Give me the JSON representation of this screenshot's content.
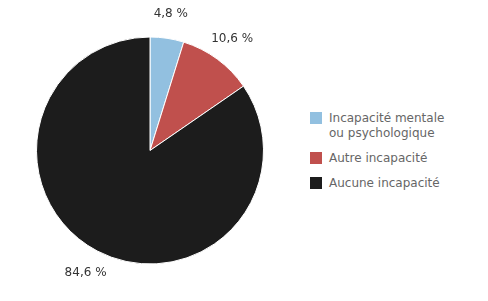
{
  "chart_data": {
    "type": "pie",
    "categories": [
      "Incapacité mentale\nou psychologique",
      "Autre incapacité",
      "Aucune incapacité"
    ],
    "values": [
      4.8,
      10.6,
      84.6
    ],
    "value_labels": [
      "4,8 %",
      "10,6 %",
      "84,6 %"
    ],
    "colors": [
      "#92C0E0",
      "#C0504D",
      "#1C1C1C"
    ],
    "data_labels": true,
    "legend": "right"
  }
}
